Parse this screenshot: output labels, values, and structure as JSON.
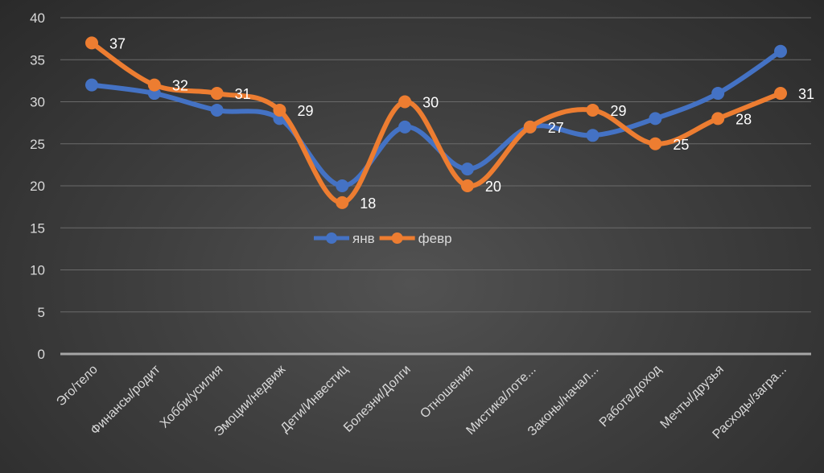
{
  "chart_data": {
    "type": "line",
    "title": "",
    "xlabel": "",
    "ylabel": "",
    "ylim": [
      0,
      40
    ],
    "yticks": [
      0,
      5,
      10,
      15,
      20,
      25,
      30,
      35,
      40
    ],
    "grid": true,
    "legend": "center",
    "categories": [
      "Эго/тело",
      "Финансы/родит",
      "Хобби/усилия",
      "Эмоции/недвиж",
      "Дети/Инвестиц",
      "Болезни/Долги",
      "Отношения",
      "Мистика/лоте...",
      "Законы/начал...",
      "Работа/доход",
      "Мечты/друзья",
      "Расходы/загра..."
    ],
    "series": [
      {
        "name": "янв",
        "color": "#4472c4",
        "values": [
          32,
          31,
          29,
          28,
          20,
          27,
          22,
          27,
          26,
          28,
          31,
          36
        ],
        "labels": false
      },
      {
        "name": "февр",
        "color": "#ed7d31",
        "values": [
          37,
          32,
          31,
          29,
          18,
          30,
          20,
          27,
          29,
          25,
          28,
          31
        ],
        "labels": true
      }
    ]
  }
}
